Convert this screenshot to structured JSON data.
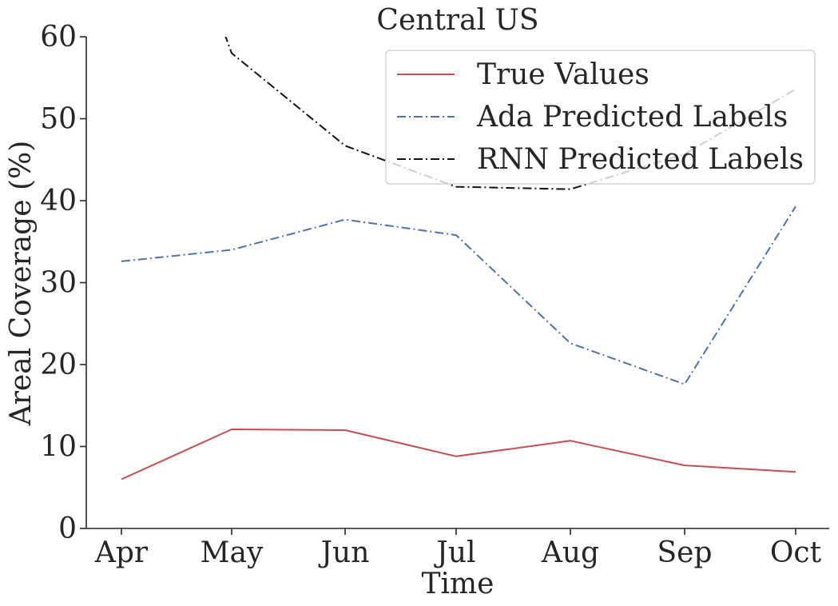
{
  "chart_data": {
    "type": "line",
    "title": "Central US",
    "xlabel": "Time",
    "ylabel": "Areal Coverage (%)",
    "categories": [
      "Apr",
      "May",
      "Jun",
      "Jul",
      "Aug",
      "Sep",
      "Oct"
    ],
    "ylim": [
      0,
      60
    ],
    "yticks": [
      "0",
      "10",
      "20",
      "30",
      "40",
      "50",
      "60"
    ],
    "grid": false,
    "legend_position": "top-right",
    "series": [
      {
        "name": "True Values",
        "values": [
          6.0,
          12.1,
          12.0,
          8.8,
          10.7,
          7.7,
          6.9
        ],
        "color": "#c44e52",
        "dash": "solid"
      },
      {
        "name": "Ada Predicted Labels",
        "values": [
          32.6,
          34.0,
          37.7,
          35.8,
          22.6,
          17.6,
          39.3
        ],
        "color": "#4c72b0",
        "dash": "dashdot"
      },
      {
        "name": "RNN Predicted Labels",
        "values": [
          null,
          58.0,
          46.7,
          41.7,
          41.4,
          45.7,
          53.6
        ],
        "color": "#111111",
        "dash": "dashdot"
      }
    ]
  }
}
